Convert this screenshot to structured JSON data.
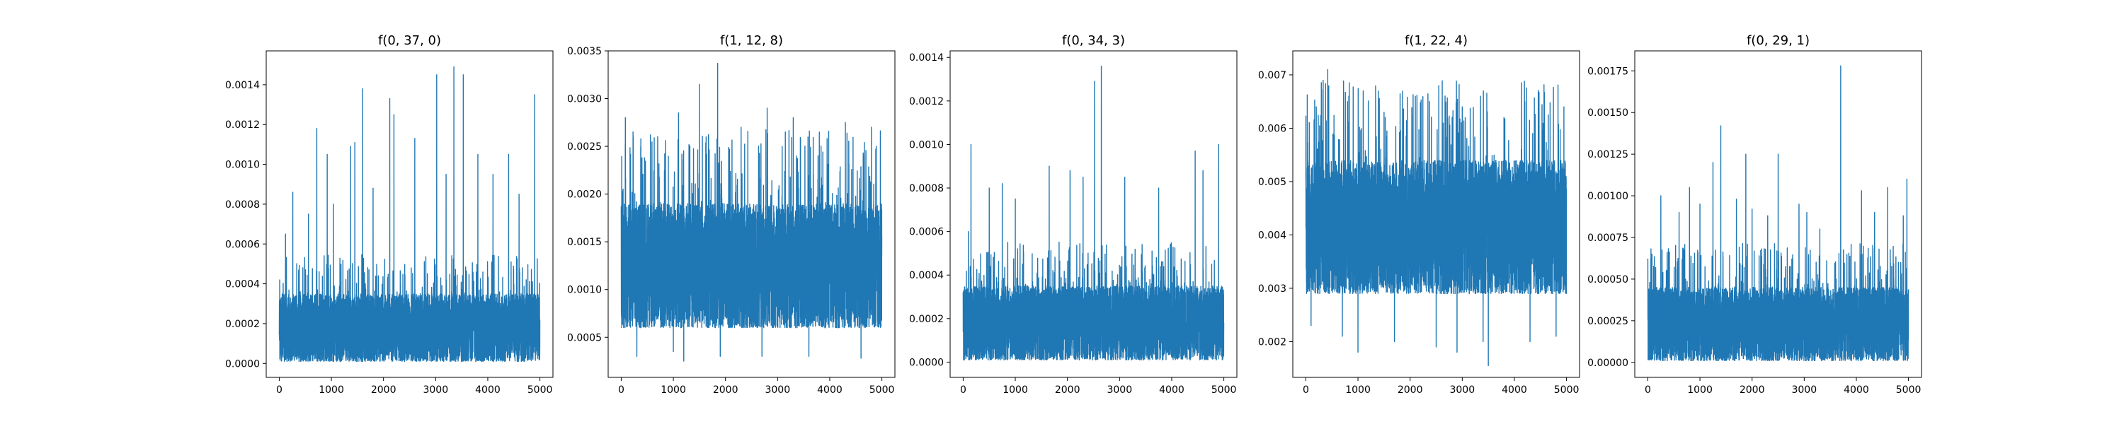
{
  "figure": {
    "background": "#ffffff",
    "line_color": "#1f77b4"
  },
  "chart_data": [
    {
      "type": "line",
      "title": "f(0, 37, 0)",
      "xlabel": "",
      "ylabel": "",
      "xlim": [
        -250,
        5250
      ],
      "ylim": [
        -7e-05,
        0.00157
      ],
      "xticks": [
        0,
        1000,
        2000,
        3000,
        4000,
        5000
      ],
      "xtick_labels": [
        "0",
        "1000",
        "2000",
        "3000",
        "4000",
        "5000"
      ],
      "yticks": [
        0.0,
        0.0002,
        0.0004,
        0.0006,
        0.0008,
        0.001,
        0.0012,
        0.0014
      ],
      "ytick_labels": [
        "0.0000",
        "0.0002",
        "0.0004",
        "0.0006",
        "0.0008",
        "0.0010",
        "0.0012",
        "0.0014"
      ],
      "grid": false,
      "legend": "none",
      "series": [
        {
          "n_points": 5000,
          "band": {
            "low": 1e-05,
            "high": 0.00035
          },
          "peaks": [
            {
              "x": 120,
              "y": 0.00065
            },
            {
              "x": 260,
              "y": 0.00086
            },
            {
              "x": 560,
              "y": 0.00075
            },
            {
              "x": 720,
              "y": 0.00118
            },
            {
              "x": 920,
              "y": 0.00105
            },
            {
              "x": 1040,
              "y": 0.0008
            },
            {
              "x": 1370,
              "y": 0.00109
            },
            {
              "x": 1450,
              "y": 0.00111
            },
            {
              "x": 1600,
              "y": 0.00138
            },
            {
              "x": 1800,
              "y": 0.00088
            },
            {
              "x": 2120,
              "y": 0.00133
            },
            {
              "x": 2200,
              "y": 0.00125
            },
            {
              "x": 2600,
              "y": 0.00113
            },
            {
              "x": 3020,
              "y": 0.00145
            },
            {
              "x": 3200,
              "y": 0.00095
            },
            {
              "x": 3350,
              "y": 0.00149
            },
            {
              "x": 3530,
              "y": 0.00145
            },
            {
              "x": 3810,
              "y": 0.00105
            },
            {
              "x": 4100,
              "y": 0.00095
            },
            {
              "x": 4400,
              "y": 0.00105
            },
            {
              "x": 4600,
              "y": 0.00085
            },
            {
              "x": 4900,
              "y": 0.00135
            }
          ]
        }
      ]
    },
    {
      "type": "line",
      "title": "f(1, 12, 8)",
      "xlabel": "",
      "ylabel": "",
      "xlim": [
        -250,
        5250
      ],
      "ylim": [
        8e-05,
        0.0035
      ],
      "xticks": [
        0,
        1000,
        2000,
        3000,
        4000,
        5000
      ],
      "xtick_labels": [
        "0",
        "1000",
        "2000",
        "3000",
        "4000",
        "5000"
      ],
      "yticks": [
        0.0005,
        0.001,
        0.0015,
        0.002,
        0.0025,
        0.003,
        0.0035
      ],
      "ytick_labels": [
        "0.0005",
        "0.0010",
        "0.0015",
        "0.0020",
        "0.0025",
        "0.0030",
        "0.0035"
      ],
      "grid": false,
      "legend": "none",
      "series": [
        {
          "n_points": 5000,
          "band": {
            "low": 0.0006,
            "high": 0.0019
          },
          "dips": [
            {
              "x": 300,
              "y": 0.0003
            },
            {
              "x": 1000,
              "y": 0.00035
            },
            {
              "x": 1200,
              "y": 0.00025
            },
            {
              "x": 1900,
              "y": 0.0003
            },
            {
              "x": 2700,
              "y": 0.0003
            },
            {
              "x": 3600,
              "y": 0.0003
            },
            {
              "x": 4600,
              "y": 0.00028
            }
          ],
          "peaks": [
            {
              "x": 80,
              "y": 0.0028
            },
            {
              "x": 300,
              "y": 0.00295
            },
            {
              "x": 700,
              "y": 0.0026
            },
            {
              "x": 1100,
              "y": 0.00285
            },
            {
              "x": 1500,
              "y": 0.00315
            },
            {
              "x": 1850,
              "y": 0.00337
            },
            {
              "x": 2300,
              "y": 0.0027
            },
            {
              "x": 2800,
              "y": 0.0029
            },
            {
              "x": 3300,
              "y": 0.0028
            },
            {
              "x": 3800,
              "y": 0.00265
            },
            {
              "x": 4300,
              "y": 0.00275
            },
            {
              "x": 4800,
              "y": 0.0027
            }
          ]
        }
      ]
    },
    {
      "type": "line",
      "title": "f(0, 34, 3)",
      "xlabel": "",
      "ylabel": "",
      "xlim": [
        -250,
        5250
      ],
      "ylim": [
        -7e-05,
        0.00143
      ],
      "xticks": [
        0,
        1000,
        2000,
        3000,
        4000,
        5000
      ],
      "xtick_labels": [
        "0",
        "1000",
        "2000",
        "3000",
        "4000",
        "5000"
      ],
      "yticks": [
        0.0,
        0.0002,
        0.0004,
        0.0006,
        0.0008,
        0.001,
        0.0012,
        0.0014
      ],
      "ytick_labels": [
        "0.0000",
        "0.0002",
        "0.0004",
        "0.0006",
        "0.0008",
        "0.0010",
        "0.0012",
        "0.0014"
      ],
      "grid": false,
      "legend": "none",
      "series": [
        {
          "n_points": 5000,
          "band": {
            "low": 1e-05,
            "high": 0.00035
          },
          "peaks": [
            {
              "x": 100,
              "y": 0.0006
            },
            {
              "x": 150,
              "y": 0.001
            },
            {
              "x": 500,
              "y": 0.0008
            },
            {
              "x": 750,
              "y": 0.00082
            },
            {
              "x": 1000,
              "y": 0.00075
            },
            {
              "x": 1650,
              "y": 0.0009
            },
            {
              "x": 2050,
              "y": 0.00088
            },
            {
              "x": 2300,
              "y": 0.00085
            },
            {
              "x": 2520,
              "y": 0.00129
            },
            {
              "x": 2650,
              "y": 0.00136
            },
            {
              "x": 3100,
              "y": 0.00085
            },
            {
              "x": 3750,
              "y": 0.0008
            },
            {
              "x": 4450,
              "y": 0.00097
            },
            {
              "x": 4600,
              "y": 0.00088
            },
            {
              "x": 4900,
              "y": 0.001
            }
          ]
        }
      ]
    },
    {
      "type": "line",
      "title": "f(1, 22, 4)",
      "xlabel": "",
      "ylabel": "",
      "xlim": [
        -250,
        5250
      ],
      "ylim": [
        0.00133,
        0.00745
      ],
      "xticks": [
        0,
        1000,
        2000,
        3000,
        4000,
        5000
      ],
      "xtick_labels": [
        "0",
        "1000",
        "2000",
        "3000",
        "4000",
        "5000"
      ],
      "yticks": [
        0.002,
        0.003,
        0.004,
        0.005,
        0.006,
        0.007
      ],
      "ytick_labels": [
        "0.002",
        "0.003",
        "0.004",
        "0.005",
        "0.006",
        "0.007"
      ],
      "grid": false,
      "legend": "none",
      "series": [
        {
          "n_points": 5000,
          "band": {
            "low": 0.0029,
            "high": 0.0054
          },
          "dips": [
            {
              "x": 100,
              "y": 0.0023
            },
            {
              "x": 700,
              "y": 0.0021
            },
            {
              "x": 1000,
              "y": 0.0018
            },
            {
              "x": 1700,
              "y": 0.002
            },
            {
              "x": 2500,
              "y": 0.0019
            },
            {
              "x": 2900,
              "y": 0.0018
            },
            {
              "x": 3400,
              "y": 0.002
            },
            {
              "x": 3500,
              "y": 0.00155
            },
            {
              "x": 4300,
              "y": 0.002
            },
            {
              "x": 4800,
              "y": 0.0021
            }
          ],
          "peaks": [
            {
              "x": 200,
              "y": 0.0064
            },
            {
              "x": 420,
              "y": 0.0071
            },
            {
              "x": 800,
              "y": 0.0065
            },
            {
              "x": 1100,
              "y": 0.0067
            },
            {
              "x": 1500,
              "y": 0.0063
            },
            {
              "x": 1700,
              "y": 0.00685
            },
            {
              "x": 2100,
              "y": 0.0066
            },
            {
              "x": 2550,
              "y": 0.0068
            },
            {
              "x": 3000,
              "y": 0.0064
            },
            {
              "x": 3350,
              "y": 0.0066
            },
            {
              "x": 3800,
              "y": 0.0062
            },
            {
              "x": 4200,
              "y": 0.0065
            },
            {
              "x": 4650,
              "y": 0.00625
            },
            {
              "x": 4950,
              "y": 0.0064
            }
          ]
        }
      ]
    },
    {
      "type": "line",
      "title": "f(0, 29, 1)",
      "xlabel": "",
      "ylabel": "",
      "xlim": [
        -250,
        5250
      ],
      "ylim": [
        -9e-05,
        0.00187
      ],
      "xticks": [
        0,
        1000,
        2000,
        3000,
        4000,
        5000
      ],
      "xtick_labels": [
        "0",
        "1000",
        "2000",
        "3000",
        "4000",
        "5000"
      ],
      "yticks": [
        0.0,
        0.00025,
        0.0005,
        0.00075,
        0.001,
        0.00125,
        0.0015,
        0.00175
      ],
      "ytick_labels": [
        "0.00000",
        "0.00025",
        "0.00050",
        "0.00075",
        "0.00100",
        "0.00125",
        "0.00150",
        "0.00175"
      ],
      "grid": false,
      "legend": "none",
      "series": [
        {
          "n_points": 5000,
          "band": {
            "low": 1e-05,
            "high": 0.00045
          },
          "peaks": [
            {
              "x": 80,
              "y": 0.00065
            },
            {
              "x": 250,
              "y": 0.001
            },
            {
              "x": 600,
              "y": 0.0009
            },
            {
              "x": 800,
              "y": 0.00105
            },
            {
              "x": 1000,
              "y": 0.00095
            },
            {
              "x": 1250,
              "y": 0.0012
            },
            {
              "x": 1400,
              "y": 0.00142
            },
            {
              "x": 1700,
              "y": 0.00098
            },
            {
              "x": 1880,
              "y": 0.00125
            },
            {
              "x": 2000,
              "y": 0.00092
            },
            {
              "x": 2300,
              "y": 0.00088
            },
            {
              "x": 2500,
              "y": 0.00125
            },
            {
              "x": 2900,
              "y": 0.00095
            },
            {
              "x": 3050,
              "y": 0.0009
            },
            {
              "x": 3300,
              "y": 0.0008
            },
            {
              "x": 3700,
              "y": 0.00178
            },
            {
              "x": 4100,
              "y": 0.00103
            },
            {
              "x": 4350,
              "y": 0.0009
            },
            {
              "x": 4600,
              "y": 0.00105
            },
            {
              "x": 4900,
              "y": 0.00088
            },
            {
              "x": 4970,
              "y": 0.0011
            }
          ]
        }
      ]
    }
  ]
}
